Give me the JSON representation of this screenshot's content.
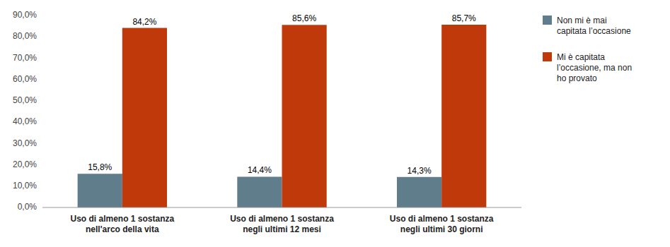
{
  "chart_data": {
    "type": "bar",
    "categories": [
      "Uso di almeno 1 sostanza\nnell'arco della vita",
      "Uso di almeno 1 sostanza\nnegli ultimi 12 mesi",
      "Uso di almeno 1 sostanza\nnegli ultimi 30 giorni"
    ],
    "series": [
      {
        "name": "Non mi è mai\ncapitata l’occasione",
        "color": "#607d8b",
        "values": [
          15.8,
          14.4,
          14.3
        ],
        "value_labels": [
          "15,8%",
          "14,4%",
          "14,3%"
        ]
      },
      {
        "name": "Mi è capitata\nl’occasione, ma non\nho provato",
        "color": "#c0390a",
        "values": [
          84.2,
          85.6,
          85.7
        ],
        "value_labels": [
          "84,2%",
          "85,6%",
          "85,7%"
        ]
      }
    ],
    "ylim": [
      0,
      90
    ],
    "yticks": [
      {
        "value": 0,
        "label": "0,0%"
      },
      {
        "value": 10,
        "label": "10,0%"
      },
      {
        "value": 20,
        "label": "20,0%"
      },
      {
        "value": 30,
        "label": "30,0%"
      },
      {
        "value": 40,
        "label": "40,0%"
      },
      {
        "value": 50,
        "label": "50,0%"
      },
      {
        "value": 60,
        "label": "60,0%"
      },
      {
        "value": 70,
        "label": "70,0%"
      },
      {
        "value": 80,
        "label": "80,0%"
      },
      {
        "value": 90,
        "label": "90,0%"
      }
    ],
    "grid": false,
    "legend": "right",
    "data_labels": true
  }
}
